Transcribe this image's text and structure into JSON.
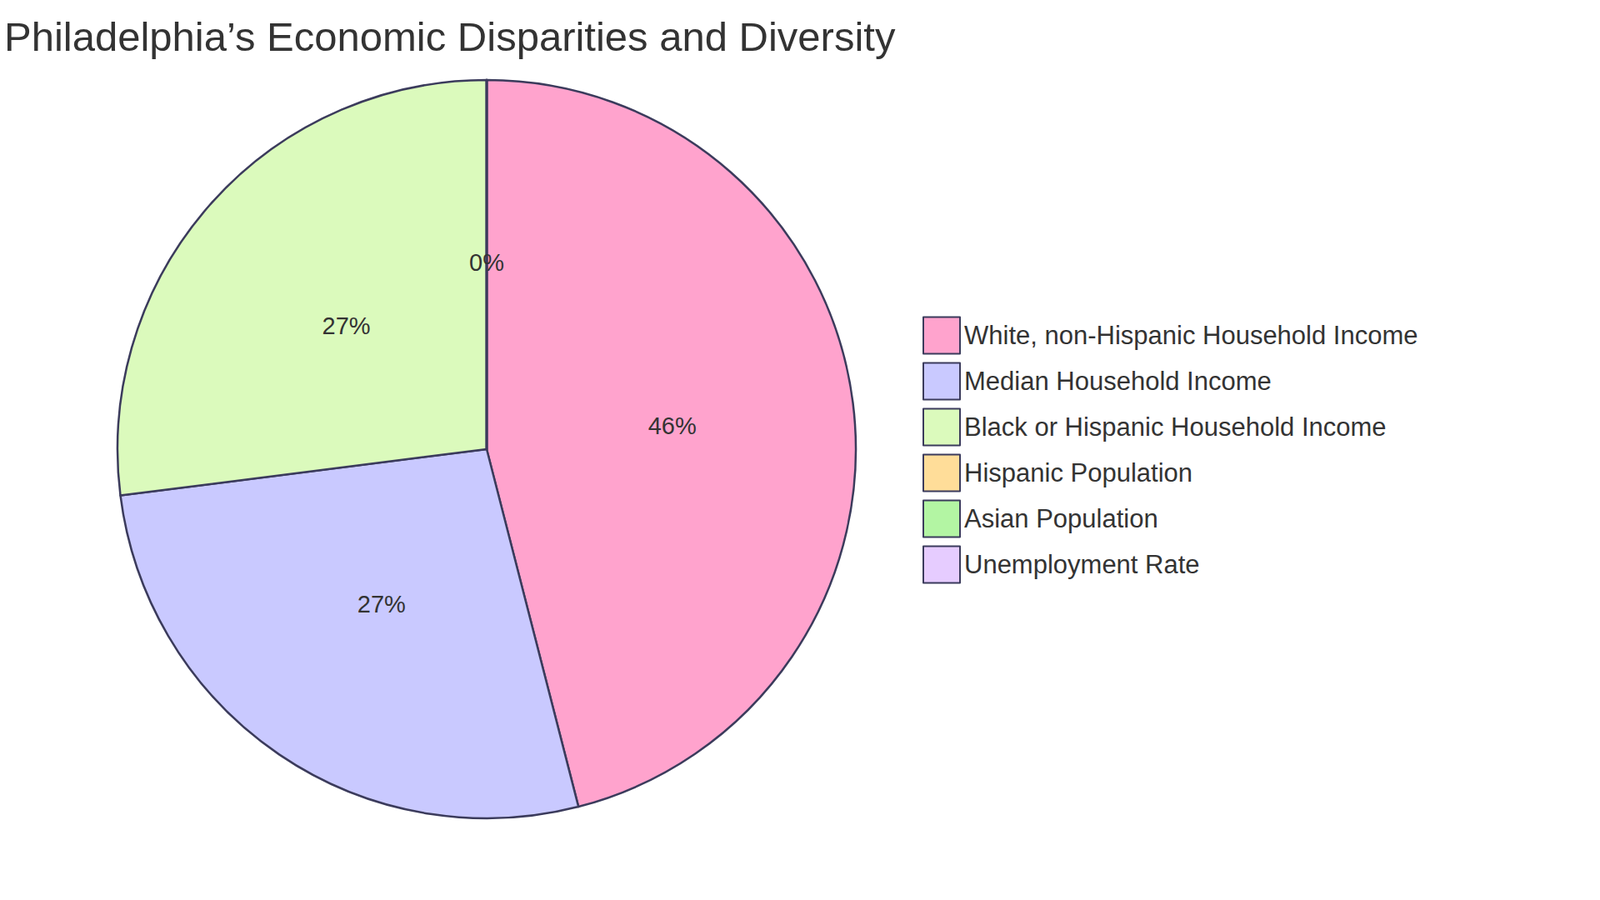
{
  "chart_data": {
    "type": "pie",
    "title": "Philadelphia’s Economic Disparities and Diversity",
    "categories": [
      "White, non-Hispanic Household Income",
      "Median Household Income",
      "Black or Hispanic Household Income",
      "Hispanic Population",
      "Asian Population",
      "Unemployment Rate"
    ],
    "values": [
      46,
      27,
      27,
      0,
      0,
      0
    ],
    "value_labels": [
      "46%",
      "27%",
      "27%",
      "0%",
      "0%",
      "0%"
    ],
    "colors": [
      "#ffa3cd",
      "#c9c9ff",
      "#dbfabc",
      "#ffdd99",
      "#b3f5a3",
      "#e6ccff"
    ],
    "data_labels": true,
    "legend": "right"
  }
}
